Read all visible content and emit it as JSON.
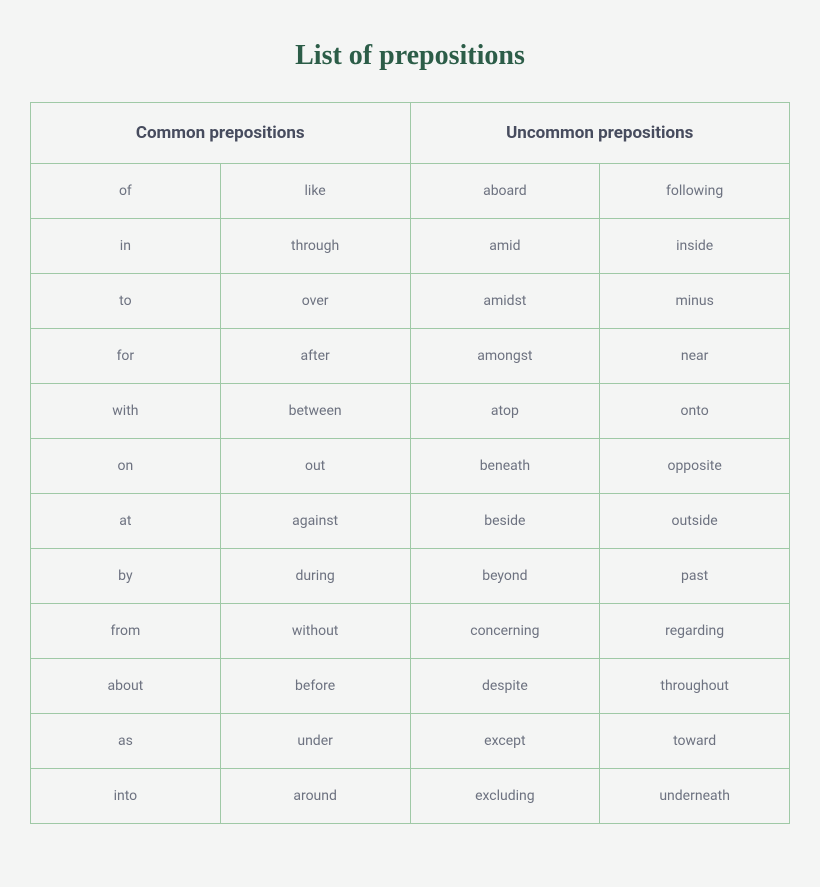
{
  "title": "List of prepositions",
  "table": {
    "type": "table",
    "border_color": "#9fc9a6",
    "background_color": "#f4f5f4",
    "title_color": "#2c5d48",
    "header_color": "#474c5e",
    "cell_text_color": "#6d7280",
    "header_fontsize": 17,
    "cell_fontsize": 14,
    "title_fontsize": 28,
    "columns": [
      {
        "label": "Common prepositions",
        "colspan": 2
      },
      {
        "label": "Uncommon prepositions",
        "colspan": 2
      }
    ],
    "rows": [
      [
        "of",
        "like",
        "aboard",
        "following"
      ],
      [
        "in",
        "through",
        "amid",
        "inside"
      ],
      [
        "to",
        "over",
        "amidst",
        "minus"
      ],
      [
        "for",
        "after",
        "amongst",
        "near"
      ],
      [
        "with",
        "between",
        "atop",
        "onto"
      ],
      [
        "on",
        "out",
        "beneath",
        "opposite"
      ],
      [
        "at",
        "against",
        "beside",
        "outside"
      ],
      [
        "by",
        "during",
        "beyond",
        "past"
      ],
      [
        "from",
        "without",
        "concerning",
        "regarding"
      ],
      [
        "about",
        "before",
        "despite",
        "throughout"
      ],
      [
        "as",
        "under",
        "except",
        "toward"
      ],
      [
        "into",
        "around",
        "excluding",
        "underneath"
      ]
    ]
  }
}
